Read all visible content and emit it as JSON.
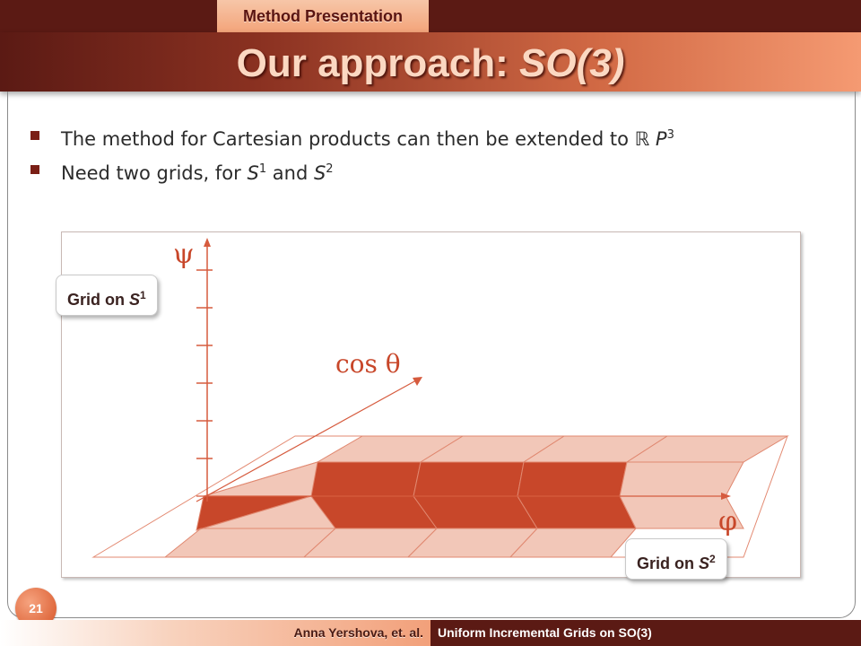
{
  "header": {
    "section_tab": "Method Presentation",
    "title_plain": "Our approach: ",
    "title_italic": "SO(3)"
  },
  "bullets": [
    {
      "text": "The method for Cartesian products can then be extended to ",
      "math_base": "ℝ P",
      "math_sup": "3"
    },
    {
      "text": "Need two grids, for ",
      "s1_base": "S",
      "s1_sup": "1",
      "and": " and ",
      "s2_base": "S",
      "s2_sup": "2"
    }
  ],
  "figure": {
    "axis_psi": "ψ",
    "axis_cos": "cos θ",
    "axis_phi": "φ",
    "callout_s1": {
      "label": "Grid on ",
      "base": "S",
      "sup": "1"
    },
    "callout_s2": {
      "label": "Grid on ",
      "base": "S",
      "sup": "2"
    },
    "colors": {
      "dark_cell": "#c8472a",
      "light_cell": "#f0c0b0",
      "axis": "#d65b3e"
    }
  },
  "footer": {
    "page_number": "21",
    "author": "Anna Yershova, et. al.",
    "talk_title": "Uniform Incremental Grids on SO(3)"
  }
}
